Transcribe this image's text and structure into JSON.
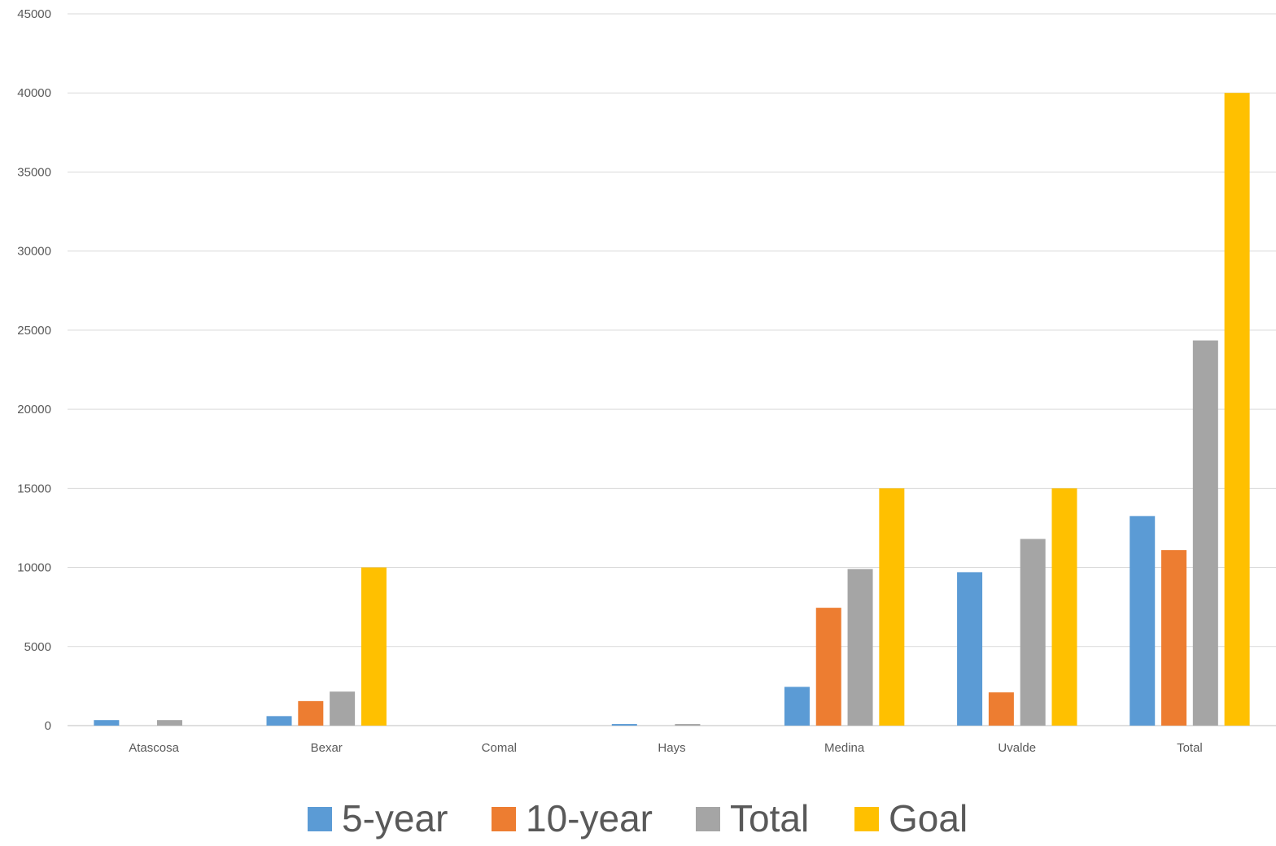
{
  "chart_data": {
    "type": "bar",
    "title": "",
    "xlabel": "",
    "ylabel": "",
    "categories": [
      "Atascosa",
      "Bexar",
      "Comal",
      "Hays",
      "Medina",
      "Uvalde",
      "Total"
    ],
    "series": [
      {
        "name": "5-year",
        "color": "#5B9BD5",
        "values": [
          350,
          600,
          0,
          100,
          2450,
          9700,
          13250
        ]
      },
      {
        "name": "10-year",
        "color": "#ED7D31",
        "values": [
          0,
          1550,
          0,
          0,
          7450,
          2100,
          11100
        ]
      },
      {
        "name": "Total",
        "color": "#A5A5A5",
        "values": [
          350,
          2150,
          0,
          100,
          9900,
          11800,
          24350
        ]
      },
      {
        "name": "Goal",
        "color": "#FFC000",
        "values": [
          0,
          10000,
          0,
          0,
          15000,
          15000,
          40000
        ]
      }
    ],
    "ylim": [
      0,
      45000
    ],
    "yticks": [
      0,
      5000,
      10000,
      15000,
      20000,
      25000,
      30000,
      35000,
      40000,
      45000
    ],
    "grid": true,
    "legend_position": "bottom"
  }
}
